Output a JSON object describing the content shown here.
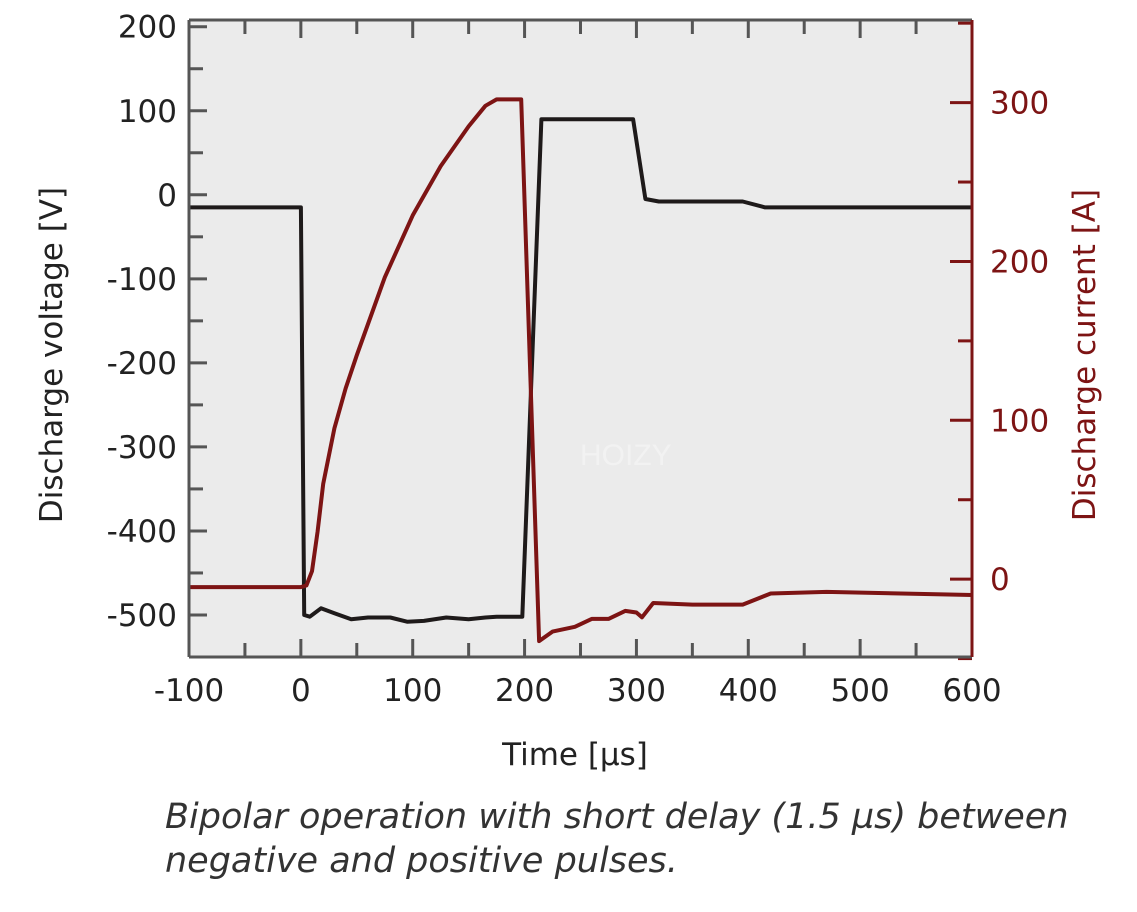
{
  "chart_data": {
    "type": "line",
    "title": "",
    "xlabel": "Time [µs]",
    "ylabel": "Discharge voltage [V]",
    "y2label": "Discharge current [A]",
    "xlim": [
      -100,
      600
    ],
    "ylim": [
      -550,
      208
    ],
    "y2lim": [
      -49,
      352
    ],
    "xticks": [
      -100,
      0,
      100,
      200,
      300,
      400,
      500,
      600
    ],
    "yticks": [
      -500,
      -400,
      -300,
      -200,
      -100,
      0,
      100,
      200
    ],
    "y2ticks": [
      0,
      100,
      200,
      300
    ],
    "grid": false,
    "series": [
      {
        "name": "Discharge voltage",
        "axis": "left",
        "color": "#1e1a1a",
        "points": [
          [
            -100,
            -15
          ],
          [
            0,
            -15
          ],
          [
            3,
            -500
          ],
          [
            8,
            -502
          ],
          [
            18,
            -492
          ],
          [
            30,
            -498
          ],
          [
            45,
            -505
          ],
          [
            60,
            -503
          ],
          [
            80,
            -503
          ],
          [
            95,
            -508
          ],
          [
            110,
            -507
          ],
          [
            130,
            -503
          ],
          [
            150,
            -505
          ],
          [
            165,
            -503
          ],
          [
            175,
            -502
          ],
          [
            198,
            -502
          ],
          [
            215,
            90
          ],
          [
            297,
            90
          ],
          [
            308,
            -5
          ],
          [
            320,
            -8
          ],
          [
            395,
            -8
          ],
          [
            415,
            -15
          ],
          [
            600,
            -15
          ]
        ]
      },
      {
        "name": "Discharge current",
        "axis": "right",
        "color": "#7d1414",
        "points": [
          [
            -100,
            -5
          ],
          [
            0,
            -5
          ],
          [
            5,
            -4
          ],
          [
            10,
            5
          ],
          [
            15,
            30
          ],
          [
            20,
            60
          ],
          [
            30,
            95
          ],
          [
            40,
            120
          ],
          [
            50,
            141
          ],
          [
            75,
            190
          ],
          [
            100,
            229
          ],
          [
            125,
            260
          ],
          [
            150,
            285
          ],
          [
            165,
            298
          ],
          [
            175,
            302
          ],
          [
            197,
            302
          ],
          [
            213,
            -39
          ],
          [
            225,
            -33
          ],
          [
            245,
            -30
          ],
          [
            260,
            -25
          ],
          [
            275,
            -25
          ],
          [
            290,
            -20
          ],
          [
            300,
            -21
          ],
          [
            305,
            -24
          ],
          [
            315,
            -15
          ],
          [
            350,
            -16
          ],
          [
            395,
            -16
          ],
          [
            420,
            -9
          ],
          [
            470,
            -8
          ],
          [
            600,
            -10
          ]
        ]
      }
    ],
    "watermark": "HOIZY"
  },
  "caption": {
    "line1": "Bipolar operation with short delay (1.5 µs) between",
    "line2": "negative and positive pulses."
  }
}
